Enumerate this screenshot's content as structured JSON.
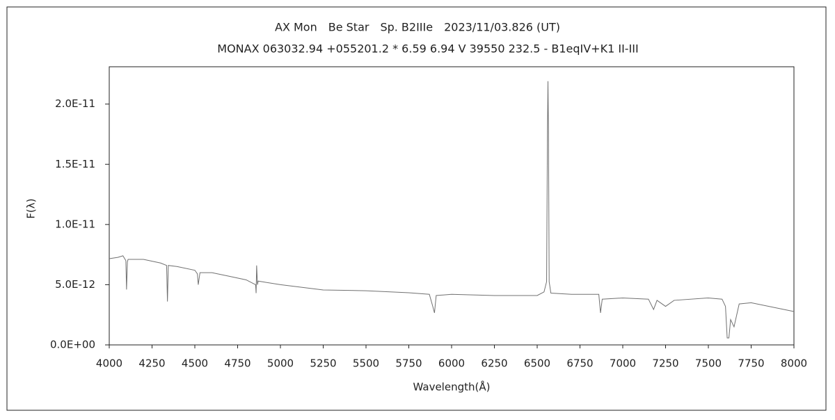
{
  "chart_data": {
    "type": "line",
    "title": "AX Mon　Be Star　Sp. B2IIIe　2023/11/03.826 (UT)",
    "subtitle": "MONAX 063032.94 +055201.2 * 6.59 6.94 V 39550 232.5 - B1eqIV+K1 II-III",
    "x_label": "Wavelength(Å)",
    "y_label": "F(λ)",
    "color": "#707070",
    "xlim": [
      4000,
      8000
    ],
    "xticks": [
      4000,
      4250,
      4500,
      4750,
      5000,
      5250,
      5500,
      5750,
      6000,
      6250,
      6500,
      6750,
      7000,
      7250,
      7500,
      7750,
      8000
    ],
    "ylim": [
      0,
      2.31e-11
    ],
    "yticks": [
      {
        "value": 0,
        "label": "0.0E+00"
      },
      {
        "value": 5e-12,
        "label": "5.0E-12"
      },
      {
        "value": 1e-11,
        "label": "1.0E-11"
      },
      {
        "value": 1.5e-11,
        "label": "1.5E-11"
      },
      {
        "value": 2e-11,
        "label": "2.0E-11"
      }
    ],
    "x": [
      4000,
      4050,
      4080,
      4097,
      4101,
      4106,
      4110,
      4200,
      4300,
      4335,
      4340,
      4345,
      4400,
      4500,
      4515,
      4520,
      4530,
      4600,
      4700,
      4800,
      4855,
      4858,
      4861,
      4866,
      4870,
      5000,
      5250,
      5500,
      5750,
      5870,
      5890,
      5900,
      5910,
      6000,
      6250,
      6500,
      6540,
      6555,
      6560,
      6563,
      6566,
      6570,
      6580,
      6700,
      6860,
      6870,
      6880,
      7000,
      7150,
      7180,
      7200,
      7250,
      7300,
      7500,
      7580,
      7600,
      7610,
      7620,
      7630,
      7650,
      7680,
      7750,
      8000
    ],
    "values": [
      7.16e-12,
      7.27e-12,
      7.4e-12,
      7e-12,
      4.6e-12,
      6.9e-12,
      7.1e-12,
      7.1e-12,
      6.8e-12,
      6.6e-12,
      3.6e-12,
      6.6e-12,
      6.5e-12,
      6.2e-12,
      5.9e-12,
      5e-12,
      6e-12,
      6e-12,
      5.7e-12,
      5.4e-12,
      5e-12,
      4.3e-12,
      6.6e-12,
      5e-12,
      5.3e-12,
      5e-12,
      4.56e-12,
      4.5e-12,
      4.33e-12,
      4.2e-12,
      3.2e-12,
      2.66e-12,
      4.1e-12,
      4.2e-12,
      4.1e-12,
      4.1e-12,
      4.4e-12,
      5.25e-12,
      1.77e-11,
      2.19e-11,
      1.77e-11,
      5.25e-12,
      4.3e-12,
      4.2e-12,
      4.2e-12,
      2.66e-12,
      3.8e-12,
      3.9e-12,
      3.8e-12,
      2.94e-12,
      3.7e-12,
      3.2e-12,
      3.7e-12,
      3.9e-12,
      3.8e-12,
      3.2e-12,
      5.8e-13,
      5.8e-13,
      2.1e-12,
      1.5e-12,
      3.4e-12,
      3.5e-12,
      2.77e-12
    ]
  }
}
